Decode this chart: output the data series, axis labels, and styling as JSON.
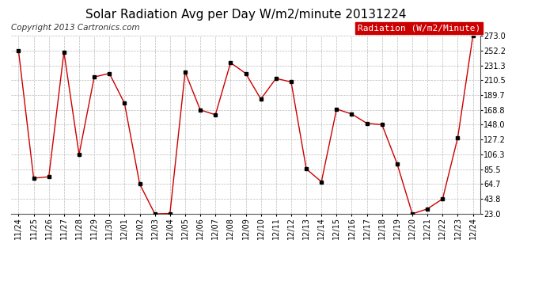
{
  "title": "Solar Radiation Avg per Day W/m2/minute 20131224",
  "copyright": "Copyright 2013 Cartronics.com",
  "legend_label": "Radiation (W/m2/Minute)",
  "dates": [
    "11/24",
    "11/25",
    "11/26",
    "11/27",
    "11/28",
    "11/29",
    "11/30",
    "12/01",
    "12/02",
    "12/03",
    "12/04",
    "12/05",
    "12/06",
    "12/07",
    "12/08",
    "12/09",
    "12/10",
    "12/11",
    "12/12",
    "12/13",
    "12/14",
    "12/15",
    "12/16",
    "12/17",
    "12/18",
    "12/19",
    "12/20",
    "12/21",
    "12/22",
    "12/23",
    "12/24"
  ],
  "values": [
    252.2,
    73.0,
    75.0,
    250.0,
    106.3,
    215.0,
    220.0,
    178.0,
    65.0,
    23.0,
    23.5,
    222.0,
    168.8,
    162.0,
    235.0,
    220.0,
    184.0,
    213.0,
    208.0,
    86.0,
    68.0,
    170.0,
    163.0,
    150.0,
    148.0,
    93.0,
    23.0,
    30.0,
    44.0,
    130.0,
    273.0
  ],
  "ylim": [
    23.0,
    273.0
  ],
  "yticks": [
    23.0,
    43.8,
    64.7,
    85.5,
    106.3,
    127.2,
    148.0,
    168.8,
    189.7,
    210.5,
    231.3,
    252.2,
    273.0
  ],
  "line_color": "#cc0000",
  "marker_color": "#000000",
  "bg_color": "#ffffff",
  "plot_bg_color": "#ffffff",
  "grid_color": "#bbbbbb",
  "title_fontsize": 11,
  "copyright_fontsize": 7.5,
  "tick_fontsize": 7,
  "legend_fontsize": 8,
  "legend_bg": "#cc0000",
  "legend_fg": "#ffffff"
}
